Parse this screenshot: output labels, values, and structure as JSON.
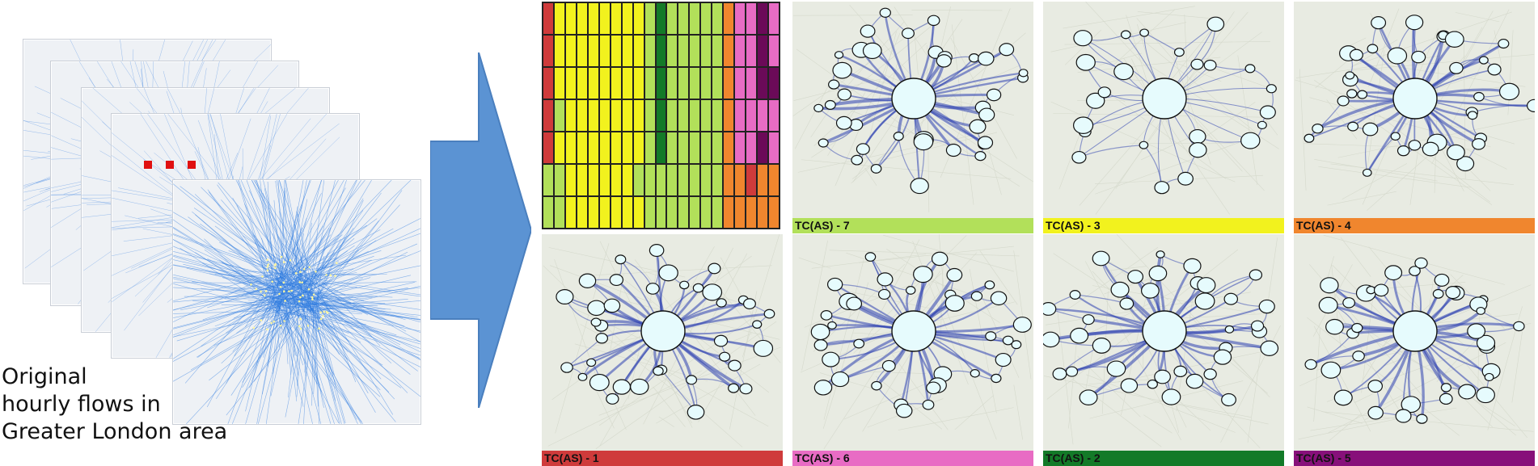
{
  "caption": {
    "line1": "Original",
    "line2": "hourly flows in",
    "line3": "Greater London area"
  },
  "colors": {
    "flow_blue": "#2f7be0",
    "arrow_fill": "#5b93d3",
    "ellipsis_red": "#e01010",
    "node_fill": "#e6fbfd",
    "edge_blue": "#2c3fb0"
  },
  "cluster_grid": {
    "rows": [
      [
        "#cf3b3b",
        "#f2f21e",
        "#f2f21e",
        "#f2f21e",
        "#f2f21e",
        "#f2f21e",
        "#f2f21e",
        "#f2f21e",
        "#f2f21e",
        "#b2e05a",
        "#137a28",
        "#b2e05a",
        "#b2e05a",
        "#b2e05a",
        "#b2e05a",
        "#b2e05a",
        "#f0862e",
        "#e86cc4",
        "#e86cc4",
        "#6b0a58",
        "#e86cc4"
      ],
      [
        "#cf3b3b",
        "#f2f21e",
        "#f2f21e",
        "#f2f21e",
        "#f2f21e",
        "#f2f21e",
        "#f2f21e",
        "#f2f21e",
        "#f2f21e",
        "#b2e05a",
        "#137a28",
        "#b2e05a",
        "#b2e05a",
        "#b2e05a",
        "#b2e05a",
        "#b2e05a",
        "#f0862e",
        "#e86cc4",
        "#e86cc4",
        "#6b0a58",
        "#e86cc4"
      ],
      [
        "#cf3b3b",
        "#f2f21e",
        "#f2f21e",
        "#f2f21e",
        "#f2f21e",
        "#f2f21e",
        "#f2f21e",
        "#f2f21e",
        "#f2f21e",
        "#b2e05a",
        "#137a28",
        "#b2e05a",
        "#b2e05a",
        "#b2e05a",
        "#b2e05a",
        "#b2e05a",
        "#f0862e",
        "#e86cc4",
        "#e86cc4",
        "#6b0a58",
        "#6b0a58"
      ],
      [
        "#cf3b3b",
        "#b2e05a",
        "#f2f21e",
        "#f2f21e",
        "#f2f21e",
        "#f2f21e",
        "#f2f21e",
        "#f2f21e",
        "#f2f21e",
        "#b2e05a",
        "#137a28",
        "#b2e05a",
        "#b2e05a",
        "#b2e05a",
        "#b2e05a",
        "#b2e05a",
        "#f0862e",
        "#e86cc4",
        "#e86cc4",
        "#e86cc4",
        "#e86cc4"
      ],
      [
        "#cf3b3b",
        "#f2f21e",
        "#f2f21e",
        "#f2f21e",
        "#f2f21e",
        "#f2f21e",
        "#f2f21e",
        "#f2f21e",
        "#f2f21e",
        "#b2e05a",
        "#137a28",
        "#b2e05a",
        "#b2e05a",
        "#b2e05a",
        "#b2e05a",
        "#b2e05a",
        "#f0862e",
        "#e86cc4",
        "#e86cc4",
        "#6b0a58",
        "#e86cc4"
      ],
      [
        "#b2e05a",
        "#b2e05a",
        "#f2f21e",
        "#f2f21e",
        "#f2f21e",
        "#f2f21e",
        "#f2f21e",
        "#f2f21e",
        "#b2e05a",
        "#b2e05a",
        "#b2e05a",
        "#b2e05a",
        "#b2e05a",
        "#b2e05a",
        "#b2e05a",
        "#b2e05a",
        "#f0862e",
        "#f0862e",
        "#cf3b3b",
        "#f0862e",
        "#f0862e"
      ],
      [
        "#b2e05a",
        "#b2e05a",
        "#f2f21e",
        "#f2f21e",
        "#f2f21e",
        "#f2f21e",
        "#f2f21e",
        "#f2f21e",
        "#f2f21e",
        "#b2e05a",
        "#b2e05a",
        "#b2e05a",
        "#b2e05a",
        "#b2e05a",
        "#b2e05a",
        "#b2e05a",
        "#f0862e",
        "#f0862e",
        "#f0862e",
        "#f0862e",
        "#f0862e"
      ]
    ]
  },
  "panels": [
    {
      "label": "TC(AS) - 7",
      "color": "#b2e05a"
    },
    {
      "label": "TC(AS) - 3",
      "color": "#f2f21e"
    },
    {
      "label": "TC(AS) - 4",
      "color": "#f0862e"
    },
    {
      "label": "TC(AS) - 1",
      "color": "#cf3b3b"
    },
    {
      "label": "TC(AS) - 6",
      "color": "#e86cc4"
    },
    {
      "label": "TC(AS) - 2",
      "color": "#137a28"
    },
    {
      "label": "TC(AS) - 5",
      "color": "#87107a"
    }
  ]
}
